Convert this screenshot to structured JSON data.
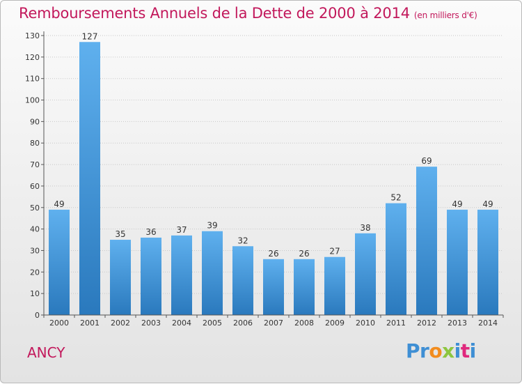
{
  "header": {
    "title": "Remboursements Annuels de la Dette de 2000 à 2014",
    "subtitle": "(en milliers d'€)"
  },
  "footer": {
    "commune": "ANCY",
    "brand_letters": [
      {
        "char": "P",
        "color": "#3f8fd4"
      },
      {
        "char": "r",
        "color": "#3f8fd4"
      },
      {
        "char": "o",
        "color": "#f28c1e"
      },
      {
        "char": "x",
        "color": "#8dc63f"
      },
      {
        "char": "i",
        "color": "#3f8fd4"
      },
      {
        "char": "t",
        "color": "#e0297e"
      },
      {
        "char": "i",
        "color": "#3f8fd4"
      }
    ]
  },
  "colors": {
    "title": "#c2185b",
    "bar_light": "#5fb0ee",
    "bar_dark": "#2a79bd",
    "grid": "#c8c8c8"
  },
  "chart_data": {
    "type": "bar",
    "categories": [
      "2000",
      "2001",
      "2002",
      "2003",
      "2004",
      "2005",
      "2006",
      "2007",
      "2008",
      "2009",
      "2010",
      "2011",
      "2012",
      "2013",
      "2014"
    ],
    "values": [
      49,
      127,
      35,
      36,
      37,
      39,
      32,
      26,
      26,
      27,
      38,
      52,
      69,
      49,
      49
    ],
    "ylim": [
      0,
      130
    ],
    "yticks": [
      0,
      10,
      20,
      30,
      40,
      50,
      60,
      70,
      80,
      90,
      100,
      110,
      120,
      130
    ],
    "grid": true,
    "legend": "none"
  }
}
